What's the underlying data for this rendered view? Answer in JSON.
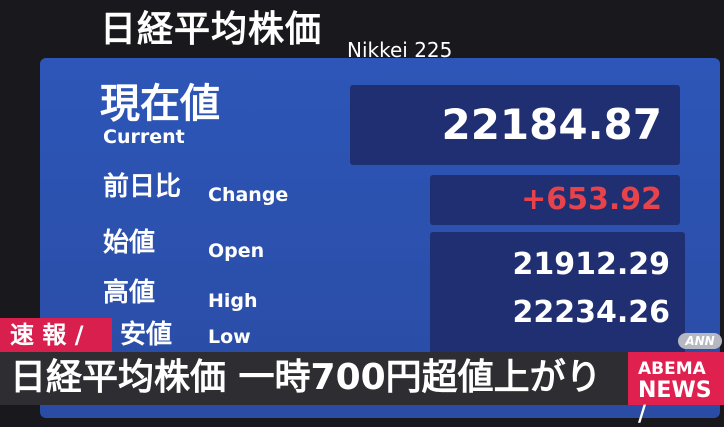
{
  "board": {
    "title": "日経平均株価",
    "subtitle": "Nikkei 225",
    "current": {
      "label_ja": "現在値",
      "label_en": "Current",
      "value": "22184.87"
    },
    "change": {
      "label_ja": "前日比",
      "label_en": "Change",
      "value": "+653.92",
      "color": "#e8434a"
    },
    "open": {
      "label_ja": "始値",
      "label_en": "Open",
      "value": "21912.29"
    },
    "high": {
      "label_ja": "高値",
      "label_en": "High",
      "value": "22234.26"
    },
    "low": {
      "label_ja": "安値",
      "label_en": "Low"
    }
  },
  "overlay": {
    "flash_label": "速 報 /",
    "headline": "日経平均株価 一時700円超値上がり",
    "network_badge": "ANN",
    "logo_line1": "ABEMA",
    "logo_line2": "NEWS /",
    "accent_color": "#d91f4e"
  }
}
